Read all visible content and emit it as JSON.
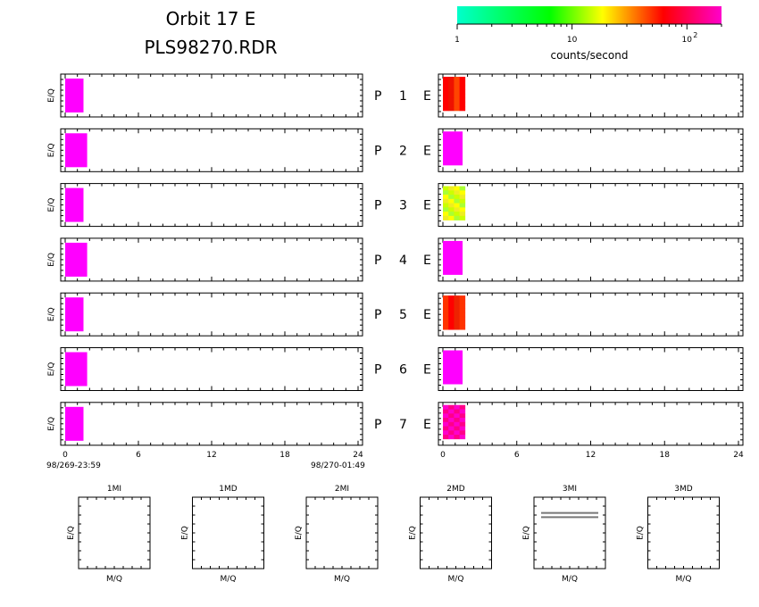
{
  "header": {
    "title_line1": "Orbit  17  E",
    "title_line2": "PLS98270.RDR"
  },
  "colorbar": {
    "label": "counts/second",
    "ticks": [
      {
        "value": 1,
        "text": "1"
      },
      {
        "value": 10,
        "text": "10"
      },
      {
        "value": 100,
        "text": "10",
        "sup": "2"
      }
    ],
    "range": [
      1,
      200
    ],
    "scale": "log",
    "colors": [
      "#00ffcc",
      "#00ff00",
      "#ffff00",
      "#ff0000",
      "#ff00cc"
    ]
  },
  "chart_data": [
    {
      "type": "heatmap",
      "description_key": "left_panels",
      "ylabel": "E/Q",
      "xlim": [
        0,
        24
      ],
      "xticks": [
        0,
        6,
        12,
        18,
        24
      ],
      "start_label": "98/269-23:59",
      "end_label": "98/270-01:49",
      "panels": [
        {
          "name": "P 1",
          "bins": [
            {
              "x0": 0,
              "x1": 1.5,
              "fill": "#ff00ff"
            }
          ]
        },
        {
          "name": "P 2",
          "bins": [
            {
              "x0": 0,
              "x1": 1.8,
              "fill": "#ff00ff"
            }
          ]
        },
        {
          "name": "P 3",
          "bins": [
            {
              "x0": 0,
              "x1": 1.5,
              "fill": "#ff00ff"
            }
          ]
        },
        {
          "name": "P 4",
          "bins": [
            {
              "x0": 0,
              "x1": 1.8,
              "fill": "#ff00ff"
            }
          ]
        },
        {
          "name": "P 5",
          "bins": [
            {
              "x0": 0,
              "x1": 1.5,
              "fill": "#ff00ff"
            }
          ]
        },
        {
          "name": "P 6",
          "bins": [
            {
              "x0": 0,
              "x1": 1.8,
              "fill": "#ff00ff"
            }
          ]
        },
        {
          "name": "P 7",
          "bins": [
            {
              "x0": 0,
              "x1": 1.5,
              "fill": "#ff00ff"
            }
          ]
        }
      ]
    },
    {
      "type": "heatmap",
      "description_key": "right_panels",
      "xlim": [
        0,
        24
      ],
      "xticks": [
        0,
        6,
        12,
        18,
        24
      ],
      "panels": [
        {
          "name": "P 1",
          "label_p": "P",
          "label_n": "1",
          "label_e": "E",
          "x1": 1.8,
          "fill": "#ff2a1a",
          "mottle": [
            "#ff0000",
            "#ff4400",
            "#ee1100"
          ]
        },
        {
          "name": "P 2",
          "label_p": "P",
          "label_n": "2",
          "label_e": "E",
          "x1": 1.6,
          "fill": "#ff00ff",
          "mottle": []
        },
        {
          "name": "P 3",
          "label_p": "P",
          "label_n": "3",
          "label_e": "E",
          "x1": 1.8,
          "fill": "#ddff33",
          "mottle": [
            "#ffff00",
            "#aaff33",
            "#ccff00",
            "#eeee22"
          ]
        },
        {
          "name": "P 4",
          "label_p": "P",
          "label_n": "4",
          "label_e": "E",
          "x1": 1.6,
          "fill": "#ff00ff",
          "mottle": []
        },
        {
          "name": "P 5",
          "label_p": "P",
          "label_n": "5",
          "label_e": "E",
          "x1": 1.8,
          "fill": "#ff2200",
          "mottle": [
            "#ff0000",
            "#ff3300",
            "#ee2200"
          ]
        },
        {
          "name": "P 6",
          "label_p": "P",
          "label_n": "6",
          "label_e": "E",
          "x1": 1.6,
          "fill": "#ff00ff",
          "mottle": []
        },
        {
          "name": "P 7",
          "label_p": "P",
          "label_n": "7",
          "label_e": "E",
          "x1": 1.8,
          "fill": "#ff00aa",
          "mottle": [
            "#ff00cc",
            "#ff0088"
          ]
        }
      ]
    },
    {
      "type": "heatmap",
      "description_key": "mass_panels",
      "xlabel": "M/Q",
      "ylabel": "E/Q",
      "panels": [
        {
          "name": "1MI",
          "lines": []
        },
        {
          "name": "1MD",
          "lines": []
        },
        {
          "name": "2MI",
          "lines": []
        },
        {
          "name": "2MD",
          "lines": []
        },
        {
          "name": "3MI",
          "lines": [
            0.22,
            0.28
          ]
        },
        {
          "name": "3MD",
          "lines": []
        }
      ]
    }
  ]
}
